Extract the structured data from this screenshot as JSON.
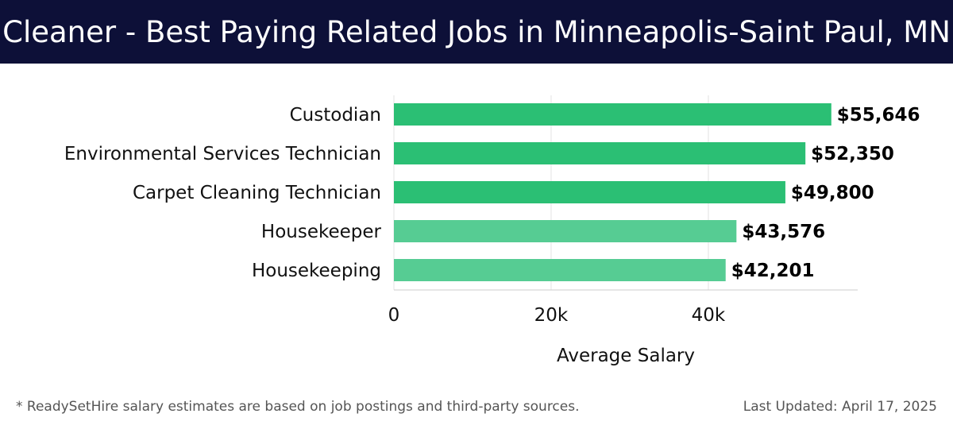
{
  "header": {
    "title": "Cleaner - Best Paying Related Jobs in Minneapolis-Saint Paul, MN"
  },
  "footer": {
    "note": "* ReadySetHire salary estimates are based on job postings and third-party sources.",
    "updated": "Last Updated: April 17, 2025"
  },
  "colors": {
    "header_bg": "#0d1038",
    "bar_dark": "#2bbf74",
    "bar_light": "#56cc93",
    "grid": "#e3e3e3"
  },
  "chart_data": {
    "type": "bar",
    "orientation": "horizontal",
    "categories": [
      "Custodian",
      "Environmental Services Technician",
      "Carpet Cleaning Technician",
      "Housekeeper",
      "Housekeeping"
    ],
    "values": [
      55646,
      52350,
      49800,
      43576,
      42201
    ],
    "value_labels": [
      "$55,646",
      "$52,350",
      "$49,800",
      "$43,576",
      "$42,201"
    ],
    "xlabel": "Average Salary",
    "xlim": [
      0,
      59000
    ],
    "xticks": [
      0,
      20000,
      40000
    ],
    "xtick_labels": [
      "0",
      "20k",
      "40k"
    ],
    "grid": true
  }
}
